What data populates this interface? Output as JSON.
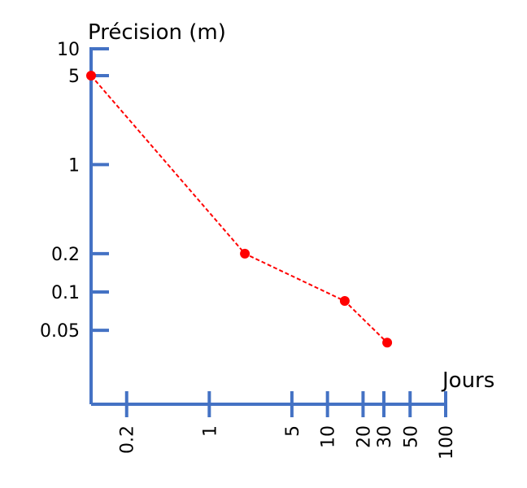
{
  "chart_data": {
    "type": "line",
    "ylabel": "Précision (m)",
    "xlabel": "Jours",
    "x_scale": "log",
    "y_scale": "log",
    "xlim": [
      0.1,
      100
    ],
    "ylim": [
      0.01,
      10
    ],
    "x_ticks": [
      {
        "value": 0.2,
        "label": "0.2"
      },
      {
        "value": 1,
        "label": "1"
      },
      {
        "value": 5,
        "label": "5"
      },
      {
        "value": 10,
        "label": "10"
      },
      {
        "value": 20,
        "label": "20"
      },
      {
        "value": 30,
        "label": "30"
      },
      {
        "value": 50,
        "label": "50"
      },
      {
        "value": 100,
        "label": "100"
      }
    ],
    "y_ticks": [
      {
        "value": 10,
        "label": "10"
      },
      {
        "value": 5,
        "label": "5"
      },
      {
        "value": 1,
        "label": "1"
      },
      {
        "value": 0.2,
        "label": "0.2"
      },
      {
        "value": 0.1,
        "label": "0.1"
      },
      {
        "value": 0.05,
        "label": "0.05"
      }
    ],
    "series": [
      {
        "x": [
          0.1,
          2,
          14,
          32
        ],
        "y": [
          5,
          0.2,
          0.085,
          0.04
        ]
      }
    ],
    "colors": {
      "axis": "#4472C4",
      "series": "#FF0000"
    },
    "grid": false
  }
}
